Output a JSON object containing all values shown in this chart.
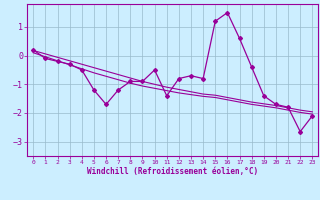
{
  "x": [
    0,
    1,
    2,
    3,
    4,
    5,
    6,
    7,
    8,
    9,
    10,
    11,
    12,
    13,
    14,
    15,
    16,
    17,
    18,
    19,
    20,
    21,
    22,
    23
  ],
  "y_main": [
    0.2,
    -0.1,
    -0.2,
    -0.3,
    -0.5,
    -1.2,
    -1.7,
    -1.2,
    -0.9,
    -0.9,
    -0.5,
    -1.4,
    -0.8,
    -0.7,
    -0.8,
    1.2,
    1.5,
    0.6,
    -0.4,
    -1.4,
    -1.7,
    -1.8,
    -2.65,
    -2.1
  ],
  "y_trend1": [
    0.18,
    0.06,
    -0.06,
    -0.18,
    -0.3,
    -0.42,
    -0.54,
    -0.66,
    -0.78,
    -0.9,
    -1.0,
    -1.1,
    -1.18,
    -1.26,
    -1.34,
    -1.38,
    -1.46,
    -1.54,
    -1.62,
    -1.68,
    -1.74,
    -1.82,
    -1.9,
    -1.96
  ],
  "y_trend2": [
    0.1,
    -0.04,
    -0.18,
    -0.32,
    -0.46,
    -0.6,
    -0.72,
    -0.84,
    -0.96,
    -1.06,
    -1.14,
    -1.22,
    -1.3,
    -1.36,
    -1.42,
    -1.46,
    -1.54,
    -1.62,
    -1.7,
    -1.76,
    -1.82,
    -1.9,
    -1.98,
    -2.04
  ],
  "line_color": "#990099",
  "bg_color": "#cceeff",
  "grid_color": "#99bbcc",
  "xlabel": "Windchill (Refroidissement éolien,°C)",
  "xlim": [
    -0.5,
    23.5
  ],
  "ylim": [
    -3.5,
    1.8
  ],
  "yticks": [
    -3,
    -2,
    -1,
    0,
    1
  ],
  "xticks": [
    0,
    1,
    2,
    3,
    4,
    5,
    6,
    7,
    8,
    9,
    10,
    11,
    12,
    13,
    14,
    15,
    16,
    17,
    18,
    19,
    20,
    21,
    22,
    23
  ]
}
